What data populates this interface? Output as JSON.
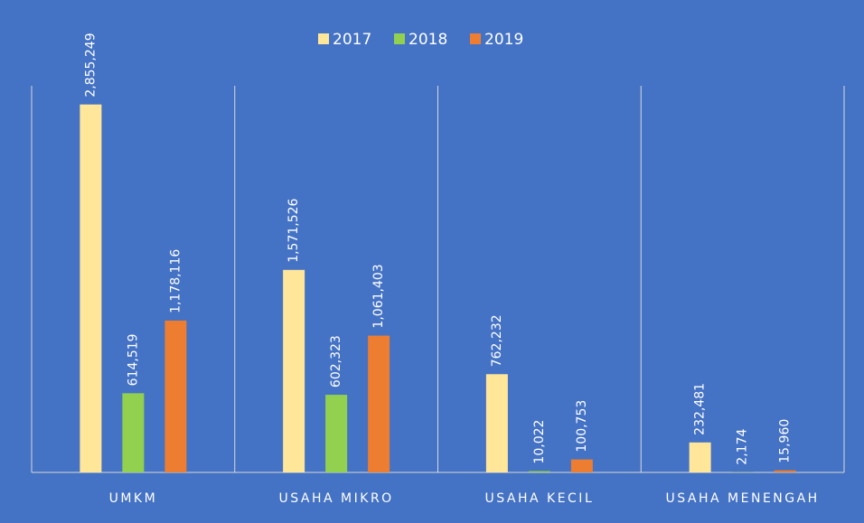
{
  "chart_data": {
    "type": "bar",
    "categories": [
      "UMKM",
      "USAHA MIKRO",
      "USAHA KECIL",
      "USAHA MENENGAH"
    ],
    "series": [
      {
        "name": "2017",
        "color": "#ffe699",
        "values": [
          2855249,
          1571526,
          762232,
          232481
        ],
        "value_labels": [
          "2,855,249",
          "1,571,526",
          "762,232",
          "232,481"
        ]
      },
      {
        "name": "2018",
        "color": "#92d050",
        "values": [
          614519,
          602323,
          10022,
          2174
        ],
        "value_labels": [
          "614,519",
          "602,323",
          "10,022",
          "2,174"
        ]
      },
      {
        "name": "2019",
        "color": "#ed7d31",
        "values": [
          1178116,
          1061403,
          100753,
          15960
        ],
        "value_labels": [
          "1,178,116",
          "1,061,403",
          "100,753",
          "15,960"
        ]
      }
    ],
    "ylim": [
      0,
      3000000
    ],
    "legend": "top"
  }
}
